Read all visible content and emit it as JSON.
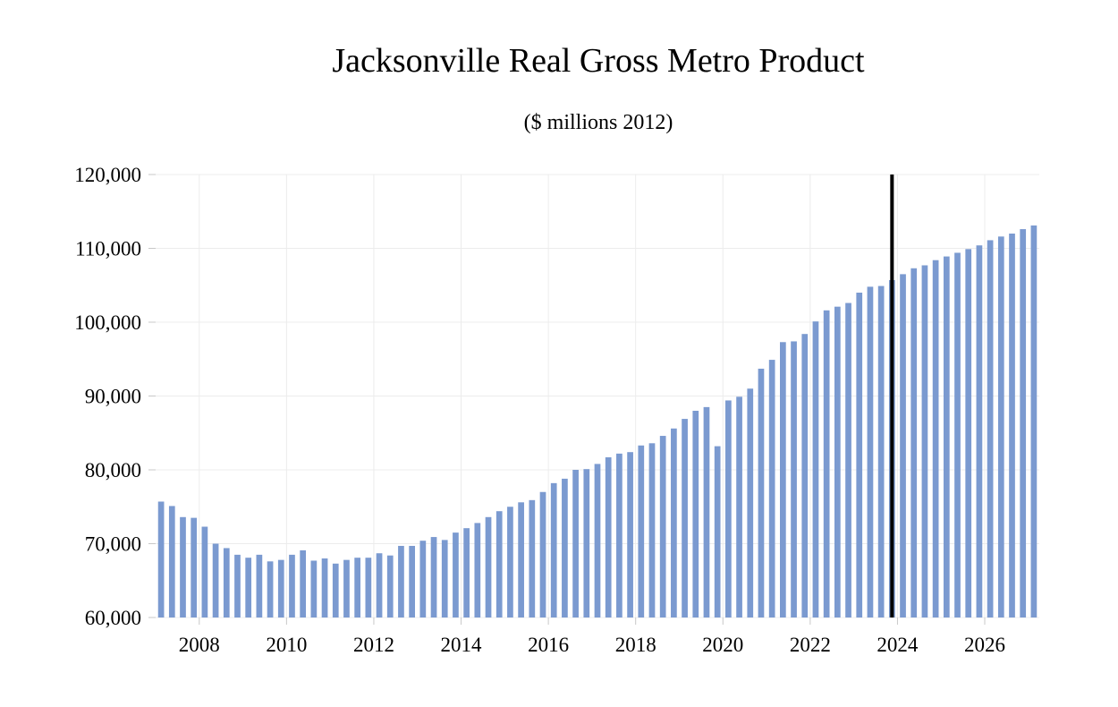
{
  "chart_data": {
    "type": "bar",
    "title": "Jacksonville Real Gross Metro Product",
    "subtitle": "($ millions 2012)",
    "xlabel": "",
    "ylabel": "",
    "ylim": [
      60000,
      120000
    ],
    "yticks": [
      60000,
      70000,
      80000,
      90000,
      100000,
      110000,
      120000
    ],
    "ytick_labels": [
      "60,000",
      "70,000",
      "80,000",
      "90,000",
      "100,000",
      "110,000",
      "120,000"
    ],
    "xticks": [
      "2008",
      "2010",
      "2012",
      "2014",
      "2016",
      "2018",
      "2020",
      "2022",
      "2024",
      "2026"
    ],
    "grid": true,
    "bar_color": "#7b9ad0",
    "marker_color": "#000000",
    "forecast_marker_after_quarter": "2023Q4",
    "categories": [
      "2007Q1",
      "2007Q2",
      "2007Q3",
      "2007Q4",
      "2008Q1",
      "2008Q2",
      "2008Q3",
      "2008Q4",
      "2009Q1",
      "2009Q2",
      "2009Q3",
      "2009Q4",
      "2010Q1",
      "2010Q2",
      "2010Q3",
      "2010Q4",
      "2011Q1",
      "2011Q2",
      "2011Q3",
      "2011Q4",
      "2012Q1",
      "2012Q2",
      "2012Q3",
      "2012Q4",
      "2013Q1",
      "2013Q2",
      "2013Q3",
      "2013Q4",
      "2014Q1",
      "2014Q2",
      "2014Q3",
      "2014Q4",
      "2015Q1",
      "2015Q2",
      "2015Q3",
      "2015Q4",
      "2016Q1",
      "2016Q2",
      "2016Q3",
      "2016Q4",
      "2017Q1",
      "2017Q2",
      "2017Q3",
      "2017Q4",
      "2018Q1",
      "2018Q2",
      "2018Q3",
      "2018Q4",
      "2019Q1",
      "2019Q2",
      "2019Q3",
      "2019Q4",
      "2020Q1",
      "2020Q2",
      "2020Q3",
      "2020Q4",
      "2021Q1",
      "2021Q2",
      "2021Q3",
      "2021Q4",
      "2022Q1",
      "2022Q2",
      "2022Q3",
      "2022Q4",
      "2023Q1",
      "2023Q2",
      "2023Q3",
      "2023Q4",
      "2024Q1",
      "2024Q2",
      "2024Q3",
      "2024Q4",
      "2025Q1",
      "2025Q2",
      "2025Q3",
      "2025Q4",
      "2026Q1",
      "2026Q2",
      "2026Q3",
      "2026Q4",
      "2027Q1"
    ],
    "values": [
      75700,
      75100,
      73600,
      73500,
      72300,
      70000,
      69400,
      68500,
      68100,
      68500,
      67600,
      67800,
      68500,
      69100,
      67700,
      68000,
      67300,
      67800,
      68100,
      68100,
      68700,
      68400,
      69700,
      69700,
      70400,
      70900,
      70500,
      71500,
      72100,
      72800,
      73600,
      74400,
      75000,
      75600,
      75900,
      77000,
      78200,
      78800,
      80000,
      80100,
      80800,
      81700,
      82200,
      82400,
      83300,
      83600,
      84600,
      85600,
      86900,
      88000,
      88500,
      83200,
      89400,
      89900,
      91000,
      93700,
      94900,
      97300,
      97400,
      98400,
      100100,
      101600,
      102100,
      102600,
      104000,
      104800,
      104900,
      105700,
      106500,
      107300,
      107700,
      108400,
      108900,
      109400,
      109900,
      110400,
      111100,
      111600,
      112000,
      112600,
      113100
    ]
  }
}
